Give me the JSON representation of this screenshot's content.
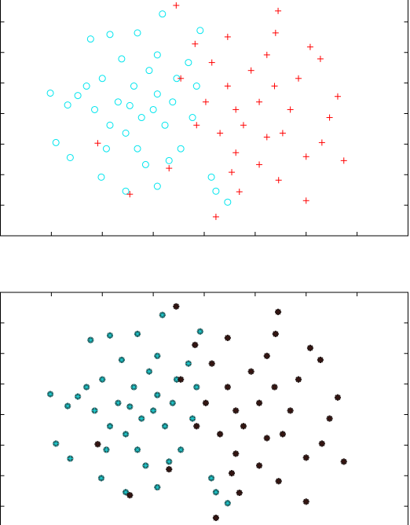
{
  "chart_data": [
    {
      "type": "scatter",
      "xlim": [
        -4,
        4
      ],
      "ylim": [
        -4,
        4
      ],
      "xticks": [
        -3,
        -2,
        -1,
        0,
        1,
        2,
        3
      ],
      "yticks": [
        -3,
        -2,
        -1,
        0,
        1,
        2,
        3
      ],
      "series": [
        {
          "color": "#00e5ee",
          "marker": "o",
          "x": [
            -3.02,
            -2.91,
            -2.63,
            -2.48,
            -2.68,
            -2.23,
            -1.85,
            -2.02,
            -1.54,
            -1.31,
            -0.82,
            -0.08,
            0.46,
            0.23,
            0.14,
            -0.92,
            -2.0,
            -1.69,
            -1.38,
            -1.23,
            -0.92,
            -1.54,
            -1.08,
            -0.77,
            -0.62,
            -1.85,
            -2.15,
            -1.31,
            -0.46,
            -0.31,
            -0.15,
            -0.92,
            -1.62,
            -1.15,
            -0.69,
            -0.23,
            -1.46,
            -1.0,
            -0.54,
            -1.92,
            -2.31
          ],
          "values": [
            0.67,
            -0.95,
            -1.44,
            0.59,
            0.28,
            2.44,
            2.59,
            -2.08,
            -2.54,
            2.64,
            3.26,
            2.72,
            -2.9,
            -2.54,
            -2.08,
            -2.38,
            1.15,
            0.38,
            0.9,
            -0.13,
            0.64,
            -0.64,
            1.41,
            -0.38,
            0.38,
            -0.38,
            0.13,
            -1.15,
            -1.15,
            1.67,
            0.9,
            1.92,
            1.79,
            -1.67,
            -1.54,
            -0.13,
            0.26,
            0.13,
            1.15,
            -1.15,
            0.9
          ]
        },
        {
          "color": "#ff0000",
          "marker": "+",
          "x": [
            -0.55,
            1.45,
            0.23,
            2.0,
            2.74,
            2.62,
            2.28,
            2.08,
            1.4,
            0.46,
            -0.18,
            -1.46,
            -2.09,
            2.31,
            2.46,
            0.62,
            1.23,
            0.03,
            -0.46,
            0.92,
            1.38,
            1.69,
            0.62,
            0.31,
            -0.15,
            1.08,
            1.46,
            0.69,
            0.46,
            1.08,
            0.77,
            1.54,
            1.85,
            0.15,
            1.23,
            0.54,
            2.0,
            -0.69
          ],
          "values": [
            3.54,
            3.36,
            -3.38,
            -2.85,
            -1.54,
            0.56,
            1.79,
            2.18,
            2.64,
            2.51,
            2.28,
            -2.64,
            -0.97,
            -0.95,
            -0.13,
            -1.28,
            -0.77,
            0.38,
            1.15,
            1.41,
            0.9,
            0.13,
            0.13,
            -0.64,
            -0.38,
            -1.67,
            -2.18,
            -2.56,
            0.9,
            0.38,
            -0.38,
            -0.64,
            1.15,
            1.67,
            1.92,
            -1.92,
            -1.41,
            -1.79
          ]
        }
      ]
    },
    {
      "type": "scatter",
      "xlim": [
        -4,
        4
      ],
      "ylim": [
        -4,
        4
      ],
      "xticks": [
        -3,
        -2,
        -1,
        0,
        1,
        2,
        3
      ],
      "yticks": [
        -3,
        -2,
        -1,
        0,
        1,
        2,
        3
      ],
      "series": [
        {
          "color": "#20c8cc",
          "marker": "*",
          "x": [
            -3.02,
            -2.91,
            -2.63,
            -2.48,
            -2.68,
            -2.23,
            -1.85,
            -2.02,
            -1.54,
            -1.31,
            -0.82,
            -0.08,
            0.46,
            0.23,
            0.14,
            -0.92,
            -2.0,
            -1.69,
            -1.38,
            -1.23,
            -0.92,
            -1.54,
            -1.08,
            -0.77,
            -0.62,
            -1.85,
            -2.15,
            -1.31,
            -0.46,
            -0.31,
            -0.15,
            -0.92,
            -1.62,
            -1.15,
            -0.69,
            -0.23,
            -1.46,
            -1.0,
            -0.54,
            -1.92,
            -2.31
          ],
          "values": [
            0.67,
            -0.95,
            -1.44,
            0.59,
            0.28,
            2.44,
            2.59,
            -2.08,
            -2.54,
            2.64,
            3.26,
            2.72,
            -2.9,
            -2.54,
            -2.08,
            -2.38,
            1.15,
            0.38,
            0.9,
            -0.13,
            0.64,
            -0.64,
            1.41,
            -0.38,
            0.38,
            -0.38,
            0.13,
            -1.15,
            -1.15,
            1.67,
            0.9,
            1.92,
            1.79,
            -1.67,
            -1.54,
            -0.13,
            0.26,
            0.13,
            1.15,
            -1.15,
            0.9
          ]
        },
        {
          "color": "#3b1612",
          "marker": "*",
          "x": [
            -0.55,
            1.45,
            0.23,
            2.0,
            2.74,
            2.62,
            2.28,
            2.08,
            1.4,
            0.46,
            -0.18,
            -1.46,
            -2.09,
            2.31,
            2.46,
            0.62,
            1.23,
            0.03,
            -0.46,
            0.92,
            1.38,
            1.69,
            0.62,
            0.31,
            -0.15,
            1.08,
            1.46,
            0.69,
            0.46,
            1.08,
            0.77,
            1.54,
            1.85,
            0.15,
            1.23,
            0.54,
            2.0,
            -0.69
          ],
          "values": [
            3.54,
            3.36,
            -3.38,
            -2.85,
            -1.54,
            0.56,
            1.79,
            2.18,
            2.64,
            2.51,
            2.28,
            -2.64,
            -0.97,
            -0.95,
            -0.13,
            -1.28,
            -0.77,
            0.38,
            1.15,
            1.41,
            0.9,
            0.13,
            0.13,
            -0.64,
            -0.38,
            -1.67,
            -2.18,
            -2.56,
            0.9,
            0.38,
            -0.38,
            -0.64,
            1.15,
            1.67,
            1.92,
            -1.92,
            -1.41,
            -1.79
          ]
        }
      ]
    }
  ]
}
